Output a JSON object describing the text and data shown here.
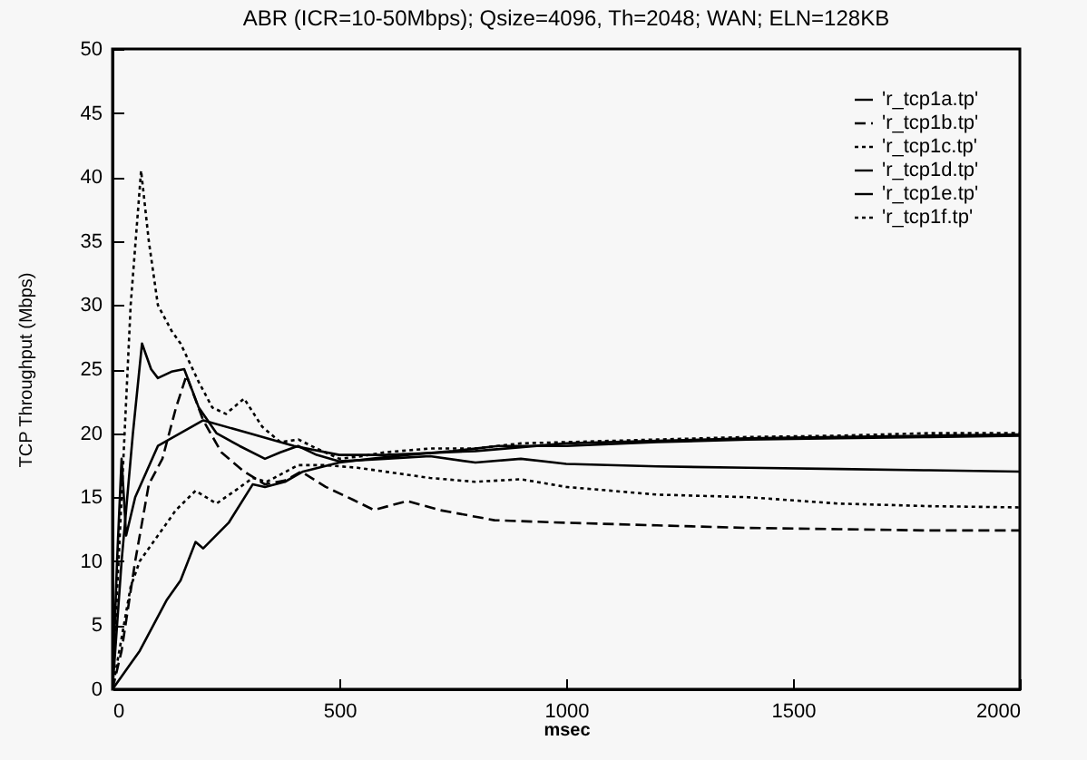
{
  "chart_data": {
    "type": "line",
    "title": "ABR (ICR=10-50Mbps); Qsize=4096, Th=2048; WAN; ELN=128KB",
    "xlabel": "msec",
    "ylabel": "TCP Throughput (Mbps)",
    "xlim": [
      0,
      2000
    ],
    "xticks": [
      0,
      500,
      1000,
      1500,
      2000
    ],
    "ylim": [
      0,
      50
    ],
    "yticks": [
      0,
      5,
      10,
      15,
      20,
      25,
      30,
      35,
      40,
      45,
      50
    ],
    "grid": false,
    "legend": "top right",
    "marker": "none",
    "series": [
      {
        "name": "'r_tcp1a.tp'",
        "color": "#000000",
        "line_style": "solid",
        "x": [
          0,
          20,
          45,
          65,
          85,
          100,
          130,
          158,
          190,
          229,
          280,
          336,
          370,
          409,
          450,
          500,
          600,
          700,
          800,
          900,
          1000,
          1200,
          1400,
          1600,
          1800,
          2000
        ],
        "values": [
          0,
          10,
          20,
          27,
          25,
          24.3,
          24.8,
          25,
          22,
          20,
          19,
          18,
          18.5,
          19,
          18.3,
          17.8,
          18,
          18.2,
          17.7,
          18,
          17.6,
          17.4,
          17.3,
          17.2,
          17.1,
          17
        ]
      },
      {
        "name": "'r_tcp1b.tp'",
        "color": "#000000",
        "line_style": "dashed",
        "x": [
          0,
          20,
          50,
          80,
          110,
          140,
          163,
          200,
          240,
          290,
          336,
          380,
          416,
          470,
          530,
          576,
          650,
          720,
          842,
          1000,
          1200,
          1400,
          1600,
          1800,
          2000
        ],
        "values": [
          0,
          3,
          10,
          16,
          18,
          22,
          24.5,
          21,
          18.5,
          17,
          16,
          16.3,
          17,
          15.8,
          14.8,
          14,
          14.7,
          14,
          13.2,
          13,
          12.8,
          12.6,
          12.5,
          12.4,
          12.4
        ]
      },
      {
        "name": "'r_tcp1c.tp'",
        "color": "#000000",
        "line_style": "dotted",
        "x": [
          0,
          20,
          40,
          60,
          100,
          140,
          183,
          229,
          270,
          309,
          340,
          409,
          470,
          540,
          600,
          700,
          800,
          900,
          1000,
          1200,
          1400,
          1600,
          1800,
          2000
        ],
        "values": [
          0,
          4,
          8,
          10,
          12,
          14,
          15.5,
          14.5,
          15.5,
          16.5,
          16.2,
          17.5,
          17.5,
          17.3,
          17,
          16.5,
          16.2,
          16.4,
          15.8,
          15.2,
          15,
          14.5,
          14.3,
          14.2
        ]
      },
      {
        "name": "'r_tcp1d.tp'",
        "color": "#000000",
        "line_style": "solid",
        "x": [
          0,
          40,
          60,
          90,
          120,
          150,
          183,
          200,
          256,
          309,
          336,
          380,
          420,
          500,
          570,
          650,
          750,
          850,
          1000,
          1200,
          1400,
          1600,
          1800,
          2000
        ],
        "values": [
          0,
          2,
          3,
          5,
          7,
          8.5,
          11.5,
          11,
          13,
          16,
          15.8,
          16.2,
          17,
          17.7,
          18,
          18.3,
          18.6,
          19,
          19,
          19.3,
          19.5,
          19.6,
          19.7,
          19.8
        ]
      },
      {
        "name": "'r_tcp1e.tp'",
        "color": "#000000",
        "line_style": "solid",
        "x": [
          0,
          10,
          20,
          30,
          50,
          100,
          200,
          300,
          400,
          500,
          600,
          800,
          1000,
          1200,
          1400,
          1600,
          1800,
          2000
        ],
        "values": [
          0,
          10,
          18,
          12,
          15,
          19,
          21,
          20,
          19,
          18.3,
          18.3,
          18.6,
          19.2,
          19.4,
          19.6,
          19.7,
          19.8,
          19.9
        ]
      },
      {
        "name": "'r_tcp1f.tp'",
        "color": "#000000",
        "line_style": "dotted",
        "x": [
          0,
          20,
          40,
          63,
          80,
          100,
          130,
          150,
          190,
          220,
          250,
          290,
          330,
          370,
          410,
          450,
          500,
          550,
          600,
          700,
          800,
          900,
          1000,
          1200,
          1400,
          1600,
          1800,
          2000
        ],
        "values": [
          0,
          15,
          30,
          40.5,
          35,
          30,
          28,
          27,
          24,
          22,
          21.5,
          22.7,
          20.5,
          19.3,
          19.5,
          18.8,
          18,
          18.2,
          18.5,
          18.8,
          18.8,
          19.2,
          19.3,
          19.5,
          19.7,
          19.8,
          20,
          20
        ]
      }
    ]
  }
}
